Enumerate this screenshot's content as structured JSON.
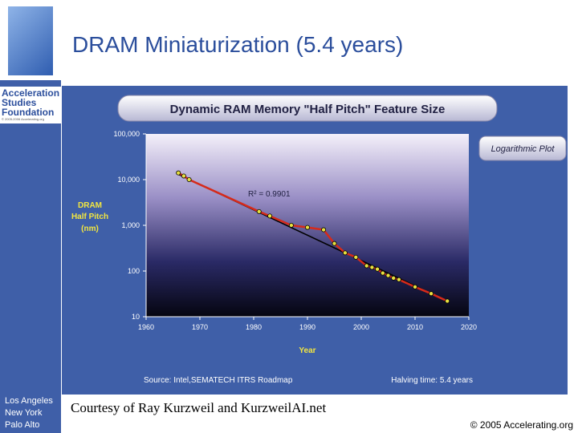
{
  "slide": {
    "title": "DRAM Miniaturization (5.4 years)",
    "courtesy": "Courtesy of Ray Kurzweil and KurzweilAI.net",
    "copyright": "© 2005 Accelerating.org"
  },
  "sidebar": {
    "logo_url": "Accelerating.org",
    "org_lines": [
      "Acceleration",
      "Studies",
      "Foundation"
    ],
    "org_copyright": "© 2005-2006 Accelerating.org",
    "offices": [
      "Los Angeles",
      "New York",
      "Palo Alto"
    ]
  },
  "chart_data": {
    "type": "line",
    "title": "Dynamic RAM Memory \"Half Pitch\" Feature Size",
    "annotation_plot": "Logarithmic Plot",
    "xlabel": "Year",
    "ylabel": [
      "DRAM",
      "Half Pitch",
      "(nm)"
    ],
    "y_scale": "log",
    "xlim": [
      1960,
      2020
    ],
    "ylim": [
      10,
      100000
    ],
    "x_ticks": [
      "1960",
      "1970",
      "1980",
      "1990",
      "2000",
      "2010",
      "2020"
    ],
    "y_ticks": [
      "10",
      "100",
      "1,000",
      "10,000",
      "100,000"
    ],
    "r_squared": "R² = 0.9901",
    "source": "Source: Intel,SEMATECH ITRS Roadmap",
    "halving": "Halving time: 5.4 years",
    "series": [
      {
        "x": [
          1966,
          1967,
          1968,
          1981,
          1983,
          1987,
          1990,
          1993,
          1995,
          1997,
          1999,
          2001,
          2002,
          2003,
          2004,
          2005,
          2006,
          2007,
          2010,
          2013,
          2016
        ],
        "y": [
          14000,
          12000,
          10000,
          2000,
          1600,
          1000,
          900,
          800,
          400,
          250,
          200,
          130,
          120,
          110,
          90,
          80,
          70,
          65,
          45,
          32,
          22
        ]
      }
    ],
    "trendline": {
      "x": [
        1966,
        2016
      ],
      "y": [
        13000,
        22
      ]
    },
    "colors": {
      "series": "#d62a1a",
      "points": "#e8e040",
      "trend": "#000000"
    }
  }
}
